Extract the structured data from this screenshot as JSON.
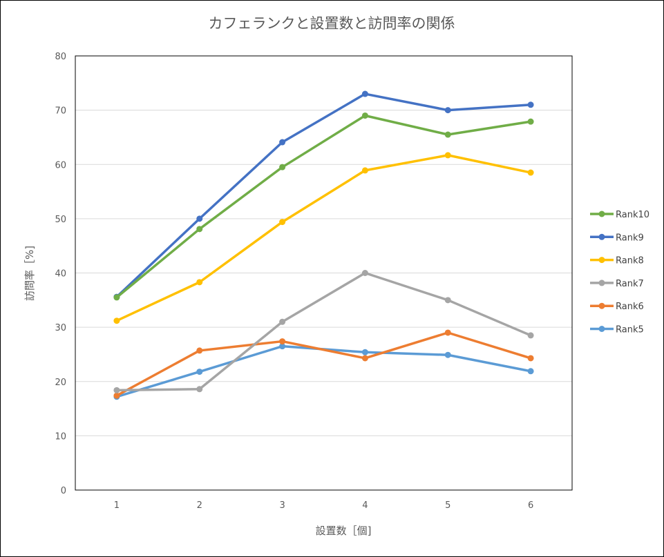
{
  "chart_data": {
    "type": "line",
    "title": "カフェランクと設置数と訪問率の関係",
    "xlabel": "設置数［個]",
    "ylabel": "訪問率［%]",
    "categories": [
      "1",
      "2",
      "3",
      "4",
      "5",
      "6"
    ],
    "ylim": [
      0,
      80
    ],
    "yticks": [
      "0",
      "10",
      "20",
      "30",
      "40",
      "50",
      "60",
      "70",
      "80"
    ],
    "grid": true,
    "legend_position": "right",
    "series": [
      {
        "name": "Rank10",
        "color": "#70AD47",
        "values": [
          35.5,
          48.1,
          59.5,
          69.0,
          65.5,
          67.9
        ]
      },
      {
        "name": "Rank9",
        "color": "#4472C4",
        "values": [
          35.6,
          50.0,
          64.1,
          73.0,
          70.0,
          71.0
        ]
      },
      {
        "name": "Rank8",
        "color": "#FFC000",
        "values": [
          31.2,
          38.3,
          49.4,
          58.9,
          61.7,
          58.5
        ]
      },
      {
        "name": "Rank7",
        "color": "#A5A5A5",
        "values": [
          18.4,
          18.6,
          31.0,
          40.0,
          35.0,
          28.5
        ]
      },
      {
        "name": "Rank6",
        "color": "#ED7D31",
        "values": [
          17.4,
          25.7,
          27.4,
          24.3,
          29.0,
          24.3
        ]
      },
      {
        "name": "Rank5",
        "color": "#5B9BD5",
        "values": [
          17.2,
          21.8,
          26.5,
          25.4,
          24.9,
          21.9
        ]
      }
    ]
  }
}
